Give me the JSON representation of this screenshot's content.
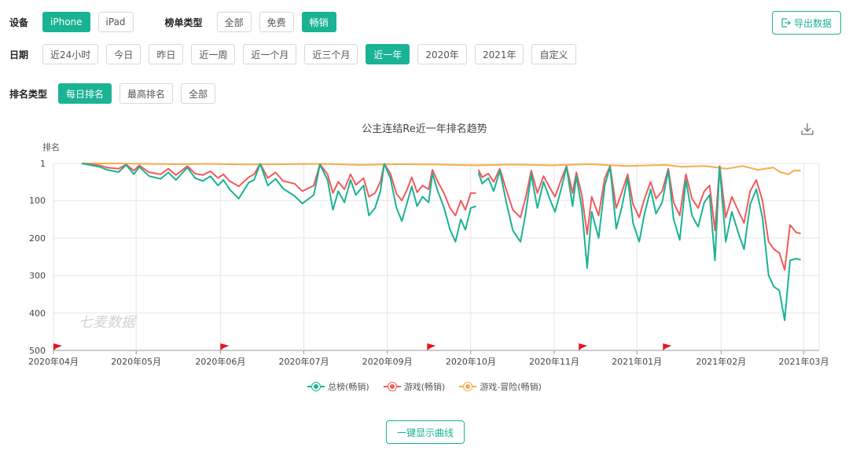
{
  "filters": {
    "device": {
      "label": "设备",
      "options": [
        "iPhone",
        "iPad"
      ],
      "active": 0
    },
    "list_type": {
      "label": "榜单类型",
      "options": [
        "全部",
        "免费",
        "畅销"
      ],
      "active": 2
    },
    "date": {
      "label": "日期",
      "options": [
        "近24小时",
        "今日",
        "昨日",
        "近一周",
        "近一个月",
        "近三个月",
        "近一年",
        "2020年",
        "2021年",
        "自定义"
      ],
      "active": 6
    },
    "rank_type": {
      "label": "排名类型",
      "options": [
        "每日排名",
        "最高排名",
        "全部"
      ],
      "active": 0
    }
  },
  "export_label": "导出数据",
  "show_curves_label": "一键显示曲线",
  "watermark": "七麦数据",
  "colors": {
    "accent": "#1ab394",
    "series_total": "#1ab394",
    "series_game": "#f25a5a",
    "series_adventure": "#f5ad4e",
    "flag": "#e8141c"
  },
  "chart_data": {
    "type": "line",
    "title": "公主连结Re近一年排名趋势",
    "ylabel": "排名",
    "y_inverted": true,
    "ylim": [
      1,
      500
    ],
    "y_ticks": [
      "1",
      "100",
      "200",
      "300",
      "400",
      "500"
    ],
    "x_ticks": [
      "2020年04月",
      "2020年05月",
      "2020年06月",
      "2020年07月",
      "2020年09月",
      "2020年10月",
      "2020年11月",
      "2021年01月",
      "2021年02月",
      "2021年03月"
    ],
    "event_flags": [
      "2020年04月初",
      "2020年06月初",
      "2020年09月下旬",
      "2020年11月中旬",
      "2021年01月中旬"
    ],
    "grid": true,
    "legend_position": "bottom",
    "series": [
      {
        "name": "总榜(畅销)",
        "color": "#1ab394",
        "points": [
          [
            0.037,
            1
          ],
          [
            0.05,
            6
          ],
          [
            0.06,
            10
          ],
          [
            0.07,
            18
          ],
          [
            0.085,
            24
          ],
          [
            0.095,
            5
          ],
          [
            0.105,
            30
          ],
          [
            0.112,
            10
          ],
          [
            0.125,
            35
          ],
          [
            0.14,
            42
          ],
          [
            0.15,
            25
          ],
          [
            0.16,
            45
          ],
          [
            0.175,
            12
          ],
          [
            0.185,
            40
          ],
          [
            0.195,
            48
          ],
          [
            0.205,
            35
          ],
          [
            0.215,
            60
          ],
          [
            0.222,
            45
          ],
          [
            0.23,
            70
          ],
          [
            0.242,
            95
          ],
          [
            0.255,
            52
          ],
          [
            0.262,
            45
          ],
          [
            0.27,
            2
          ],
          [
            0.28,
            60
          ],
          [
            0.29,
            42
          ],
          [
            0.3,
            68
          ],
          [
            0.315,
            88
          ],
          [
            0.325,
            108
          ],
          [
            0.34,
            85
          ],
          [
            0.348,
            4
          ],
          [
            0.358,
            45
          ],
          [
            0.365,
            125
          ],
          [
            0.372,
            75
          ],
          [
            0.38,
            105
          ],
          [
            0.388,
            45
          ],
          [
            0.395,
            85
          ],
          [
            0.405,
            60
          ],
          [
            0.412,
            140
          ],
          [
            0.42,
            120
          ],
          [
            0.427,
            75
          ],
          [
            0.432,
            2
          ],
          [
            0.44,
            40
          ],
          [
            0.448,
            120
          ],
          [
            0.455,
            155
          ],
          [
            0.462,
            105
          ],
          [
            0.468,
            62
          ],
          [
            0.475,
            115
          ],
          [
            0.482,
            90
          ],
          [
            0.49,
            105
          ],
          [
            0.495,
            28
          ],
          [
            0.502,
            75
          ],
          [
            0.51,
            118
          ],
          [
            0.518,
            178
          ],
          [
            0.525,
            210
          ],
          [
            0.532,
            150
          ],
          [
            0.538,
            178
          ],
          [
            0.545,
            120
          ],
          [
            0.552,
            115
          ],
          null,
          [
            0.555,
            25
          ],
          [
            0.56,
            55
          ],
          [
            0.568,
            40
          ],
          [
            0.575,
            75
          ],
          [
            0.583,
            20
          ],
          [
            0.592,
            110
          ],
          [
            0.6,
            180
          ],
          [
            0.61,
            210
          ],
          [
            0.617,
            130
          ],
          [
            0.624,
            30
          ],
          [
            0.632,
            120
          ],
          [
            0.64,
            50
          ],
          [
            0.648,
            95
          ],
          [
            0.655,
            130
          ],
          [
            0.663,
            70
          ],
          [
            0.67,
            10
          ],
          [
            0.678,
            115
          ],
          [
            0.683,
            35
          ],
          [
            0.69,
            120
          ],
          [
            0.697,
            280
          ],
          [
            0.703,
            130
          ],
          [
            0.712,
            200
          ],
          [
            0.72,
            60
          ],
          [
            0.727,
            10
          ],
          [
            0.735,
            175
          ],
          [
            0.742,
            120
          ],
          [
            0.75,
            40
          ],
          [
            0.757,
            160
          ],
          [
            0.765,
            210
          ],
          [
            0.772,
            135
          ],
          [
            0.78,
            70
          ],
          [
            0.787,
            135
          ],
          [
            0.795,
            105
          ],
          [
            0.803,
            20
          ],
          [
            0.81,
            150
          ],
          [
            0.818,
            205
          ],
          [
            0.826,
            45
          ],
          [
            0.834,
            140
          ],
          [
            0.842,
            170
          ],
          [
            0.85,
            105
          ],
          [
            0.857,
            85
          ],
          [
            0.864,
            260
          ],
          [
            0.87,
            10
          ],
          [
            0.878,
            210
          ],
          [
            0.886,
            130
          ],
          [
            0.895,
            190
          ],
          [
            0.902,
            230
          ],
          [
            0.91,
            110
          ],
          [
            0.918,
            70
          ],
          [
            0.926,
            145
          ],
          [
            0.934,
            300
          ],
          [
            0.941,
            330
          ],
          [
            0.948,
            340
          ],
          [
            0.955,
            420
          ],
          [
            0.962,
            260
          ],
          [
            0.97,
            255
          ],
          [
            0.976,
            258
          ]
        ]
      },
      {
        "name": "游戏(畅销)",
        "color": "#f25a5a",
        "points": [
          [
            0.037,
            1
          ],
          [
            0.05,
            4
          ],
          [
            0.06,
            6
          ],
          [
            0.07,
            12
          ],
          [
            0.085,
            15
          ],
          [
            0.095,
            4
          ],
          [
            0.105,
            20
          ],
          [
            0.112,
            6
          ],
          [
            0.125,
            25
          ],
          [
            0.14,
            30
          ],
          [
            0.15,
            15
          ],
          [
            0.16,
            32
          ],
          [
            0.175,
            8
          ],
          [
            0.185,
            28
          ],
          [
            0.195,
            32
          ],
          [
            0.205,
            22
          ],
          [
            0.215,
            40
          ],
          [
            0.222,
            30
          ],
          [
            0.23,
            48
          ],
          [
            0.242,
            62
          ],
          [
            0.255,
            38
          ],
          [
            0.262,
            30
          ],
          [
            0.27,
            2
          ],
          [
            0.28,
            40
          ],
          [
            0.29,
            25
          ],
          [
            0.3,
            48
          ],
          [
            0.315,
            55
          ],
          [
            0.325,
            75
          ],
          [
            0.34,
            60
          ],
          [
            0.348,
            3
          ],
          [
            0.358,
            30
          ],
          [
            0.365,
            80
          ],
          [
            0.372,
            50
          ],
          [
            0.38,
            70
          ],
          [
            0.388,
            30
          ],
          [
            0.395,
            58
          ],
          [
            0.405,
            40
          ],
          [
            0.412,
            90
          ],
          [
            0.42,
            80
          ],
          [
            0.427,
            50
          ],
          [
            0.432,
            2
          ],
          [
            0.44,
            28
          ],
          [
            0.448,
            82
          ],
          [
            0.455,
            100
          ],
          [
            0.462,
            70
          ],
          [
            0.468,
            38
          ],
          [
            0.475,
            78
          ],
          [
            0.482,
            60
          ],
          [
            0.49,
            70
          ],
          [
            0.495,
            18
          ],
          [
            0.502,
            50
          ],
          [
            0.51,
            80
          ],
          [
            0.518,
            120
          ],
          [
            0.525,
            140
          ],
          [
            0.532,
            100
          ],
          [
            0.538,
            125
          ],
          [
            0.545,
            80
          ],
          [
            0.552,
            80
          ],
          null,
          [
            0.555,
            18
          ],
          [
            0.56,
            38
          ],
          [
            0.568,
            28
          ],
          [
            0.575,
            50
          ],
          [
            0.583,
            15
          ],
          [
            0.592,
            75
          ],
          [
            0.6,
            125
          ],
          [
            0.61,
            145
          ],
          [
            0.617,
            90
          ],
          [
            0.624,
            20
          ],
          [
            0.632,
            80
          ],
          [
            0.64,
            35
          ],
          [
            0.648,
            65
          ],
          [
            0.655,
            90
          ],
          [
            0.663,
            45
          ],
          [
            0.67,
            8
          ],
          [
            0.678,
            80
          ],
          [
            0.683,
            25
          ],
          [
            0.69,
            85
          ],
          [
            0.697,
            190
          ],
          [
            0.703,
            90
          ],
          [
            0.712,
            140
          ],
          [
            0.72,
            40
          ],
          [
            0.727,
            8
          ],
          [
            0.735,
            120
          ],
          [
            0.742,
            80
          ],
          [
            0.75,
            30
          ],
          [
            0.757,
            110
          ],
          [
            0.765,
            145
          ],
          [
            0.772,
            95
          ],
          [
            0.78,
            50
          ],
          [
            0.787,
            95
          ],
          [
            0.795,
            75
          ],
          [
            0.803,
            15
          ],
          [
            0.81,
            105
          ],
          [
            0.818,
            140
          ],
          [
            0.826,
            30
          ],
          [
            0.834,
            95
          ],
          [
            0.842,
            120
          ],
          [
            0.85,
            75
          ],
          [
            0.857,
            60
          ],
          [
            0.864,
            180
          ],
          [
            0.87,
            8
          ],
          [
            0.878,
            145
          ],
          [
            0.886,
            90
          ],
          [
            0.895,
            130
          ],
          [
            0.902,
            160
          ],
          [
            0.91,
            75
          ],
          [
            0.918,
            45
          ],
          [
            0.926,
            100
          ],
          [
            0.934,
            210
          ],
          [
            0.941,
            230
          ],
          [
            0.948,
            240
          ],
          [
            0.955,
            285
          ],
          [
            0.962,
            165
          ],
          [
            0.97,
            185
          ],
          [
            0.976,
            188
          ]
        ]
      },
      {
        "name": "游戏-冒险(畅销)",
        "color": "#f5ad4e",
        "points": [
          [
            0.037,
            1
          ],
          [
            0.08,
            1
          ],
          [
            0.12,
            2
          ],
          [
            0.16,
            3
          ],
          [
            0.2,
            2
          ],
          [
            0.25,
            4
          ],
          [
            0.3,
            3
          ],
          [
            0.35,
            2
          ],
          [
            0.4,
            5
          ],
          [
            0.45,
            3
          ],
          [
            0.5,
            4
          ],
          [
            0.55,
            6
          ],
          [
            0.6,
            4
          ],
          [
            0.65,
            6
          ],
          [
            0.7,
            3
          ],
          [
            0.75,
            8
          ],
          [
            0.8,
            5
          ],
          [
            0.82,
            10
          ],
          [
            0.85,
            8
          ],
          [
            0.88,
            15
          ],
          [
            0.9,
            8
          ],
          [
            0.92,
            18
          ],
          [
            0.94,
            12
          ],
          [
            0.95,
            25
          ],
          [
            0.96,
            30
          ],
          [
            0.967,
            20
          ],
          [
            0.976,
            20
          ]
        ]
      }
    ]
  }
}
